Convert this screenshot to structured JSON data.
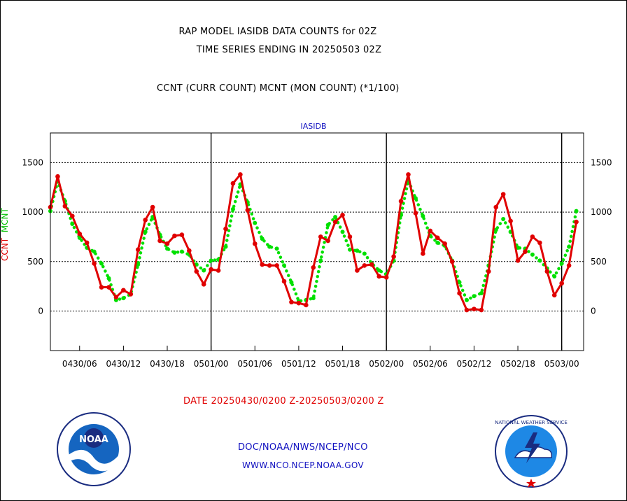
{
  "header": {
    "title_line1": "RAP MODEL IASIDB DATA COUNTS for 02Z",
    "title_line2": "TIME SERIES ENDING IN 20250503 02Z",
    "subtitle": "CCNT (CURR COUNT) MCNT (MON COUNT) (*1/100)"
  },
  "footer": {
    "date_range": "DATE 20250430/0200 Z-20250503/0200 Z",
    "link1": "DOC/NOAA/NWS/NCEP/NCO",
    "link2": "WWW.NCO.NCEP.NOAA.GOV"
  },
  "logos": {
    "left_name": "NOAA",
    "right_name": "NATIONAL WEATHER SERVICE"
  },
  "colors": {
    "ccnt": "#e00000",
    "mcnt": "#00e000",
    "axis": "#000000",
    "label_blue": "#1010c0"
  },
  "chart_data": {
    "type": "line",
    "title": "IASIDB",
    "ylabel_parts": [
      "CCNT",
      "MCNT"
    ],
    "ylim": [
      -400,
      1800
    ],
    "xlim": [
      0,
      73
    ],
    "yticks": [
      0,
      500,
      1000,
      1500
    ],
    "grid": true,
    "x_tick_labels": [
      {
        "x": 4,
        "label": "0430/06"
      },
      {
        "x": 10,
        "label": "0430/12"
      },
      {
        "x": 16,
        "label": "0430/18"
      },
      {
        "x": 22,
        "label": "0501/00"
      },
      {
        "x": 28,
        "label": "0501/06"
      },
      {
        "x": 34,
        "label": "0501/12"
      },
      {
        "x": 40,
        "label": "0501/18"
      },
      {
        "x": 46,
        "label": "0502/00"
      },
      {
        "x": 52,
        "label": "0502/06"
      },
      {
        "x": 58,
        "label": "0502/12"
      },
      {
        "x": 64,
        "label": "0502/18"
      },
      {
        "x": 70,
        "label": "0503/00"
      }
    ],
    "day_separators": [
      22,
      46,
      70
    ],
    "series": [
      {
        "name": "CCNT",
        "color": "#e00000",
        "style": "solid",
        "values": [
          1050,
          1360,
          1060,
          960,
          780,
          690,
          480,
          240,
          240,
          140,
          210,
          170,
          620,
          920,
          1050,
          710,
          680,
          760,
          770,
          610,
          400,
          270,
          420,
          410,
          830,
          1290,
          1380,
          1020,
          680,
          470,
          460,
          460,
          300,
          90,
          80,
          60,
          440,
          750,
          710,
          900,
          970,
          750,
          410,
          460,
          470,
          350,
          340,
          550,
          1110,
          1380,
          990,
          580,
          810,
          740,
          680,
          500,
          180,
          10,
          20,
          10,
          400,
          1050,
          1180,
          910,
          510,
          600,
          750,
          690,
          400,
          160,
          280,
          460,
          900
        ]
      },
      {
        "name": "MCNT",
        "color": "#00e000",
        "style": "dotted",
        "values": [
          1010,
          1310,
          1110,
          880,
          740,
          640,
          600,
          480,
          330,
          110,
          130,
          170,
          470,
          800,
          950,
          770,
          630,
          590,
          600,
          570,
          470,
          410,
          510,
          520,
          650,
          1030,
          1280,
          1100,
          890,
          730,
          650,
          630,
          460,
          290,
          100,
          110,
          130,
          510,
          870,
          950,
          800,
          620,
          610,
          580,
          480,
          410,
          370,
          510,
          970,
          1320,
          1140,
          960,
          760,
          690,
          660,
          510,
          290,
          110,
          150,
          180,
          460,
          820,
          930,
          800,
          640,
          630,
          570,
          510,
          430,
          350,
          480,
          650,
          1010
        ]
      }
    ]
  }
}
